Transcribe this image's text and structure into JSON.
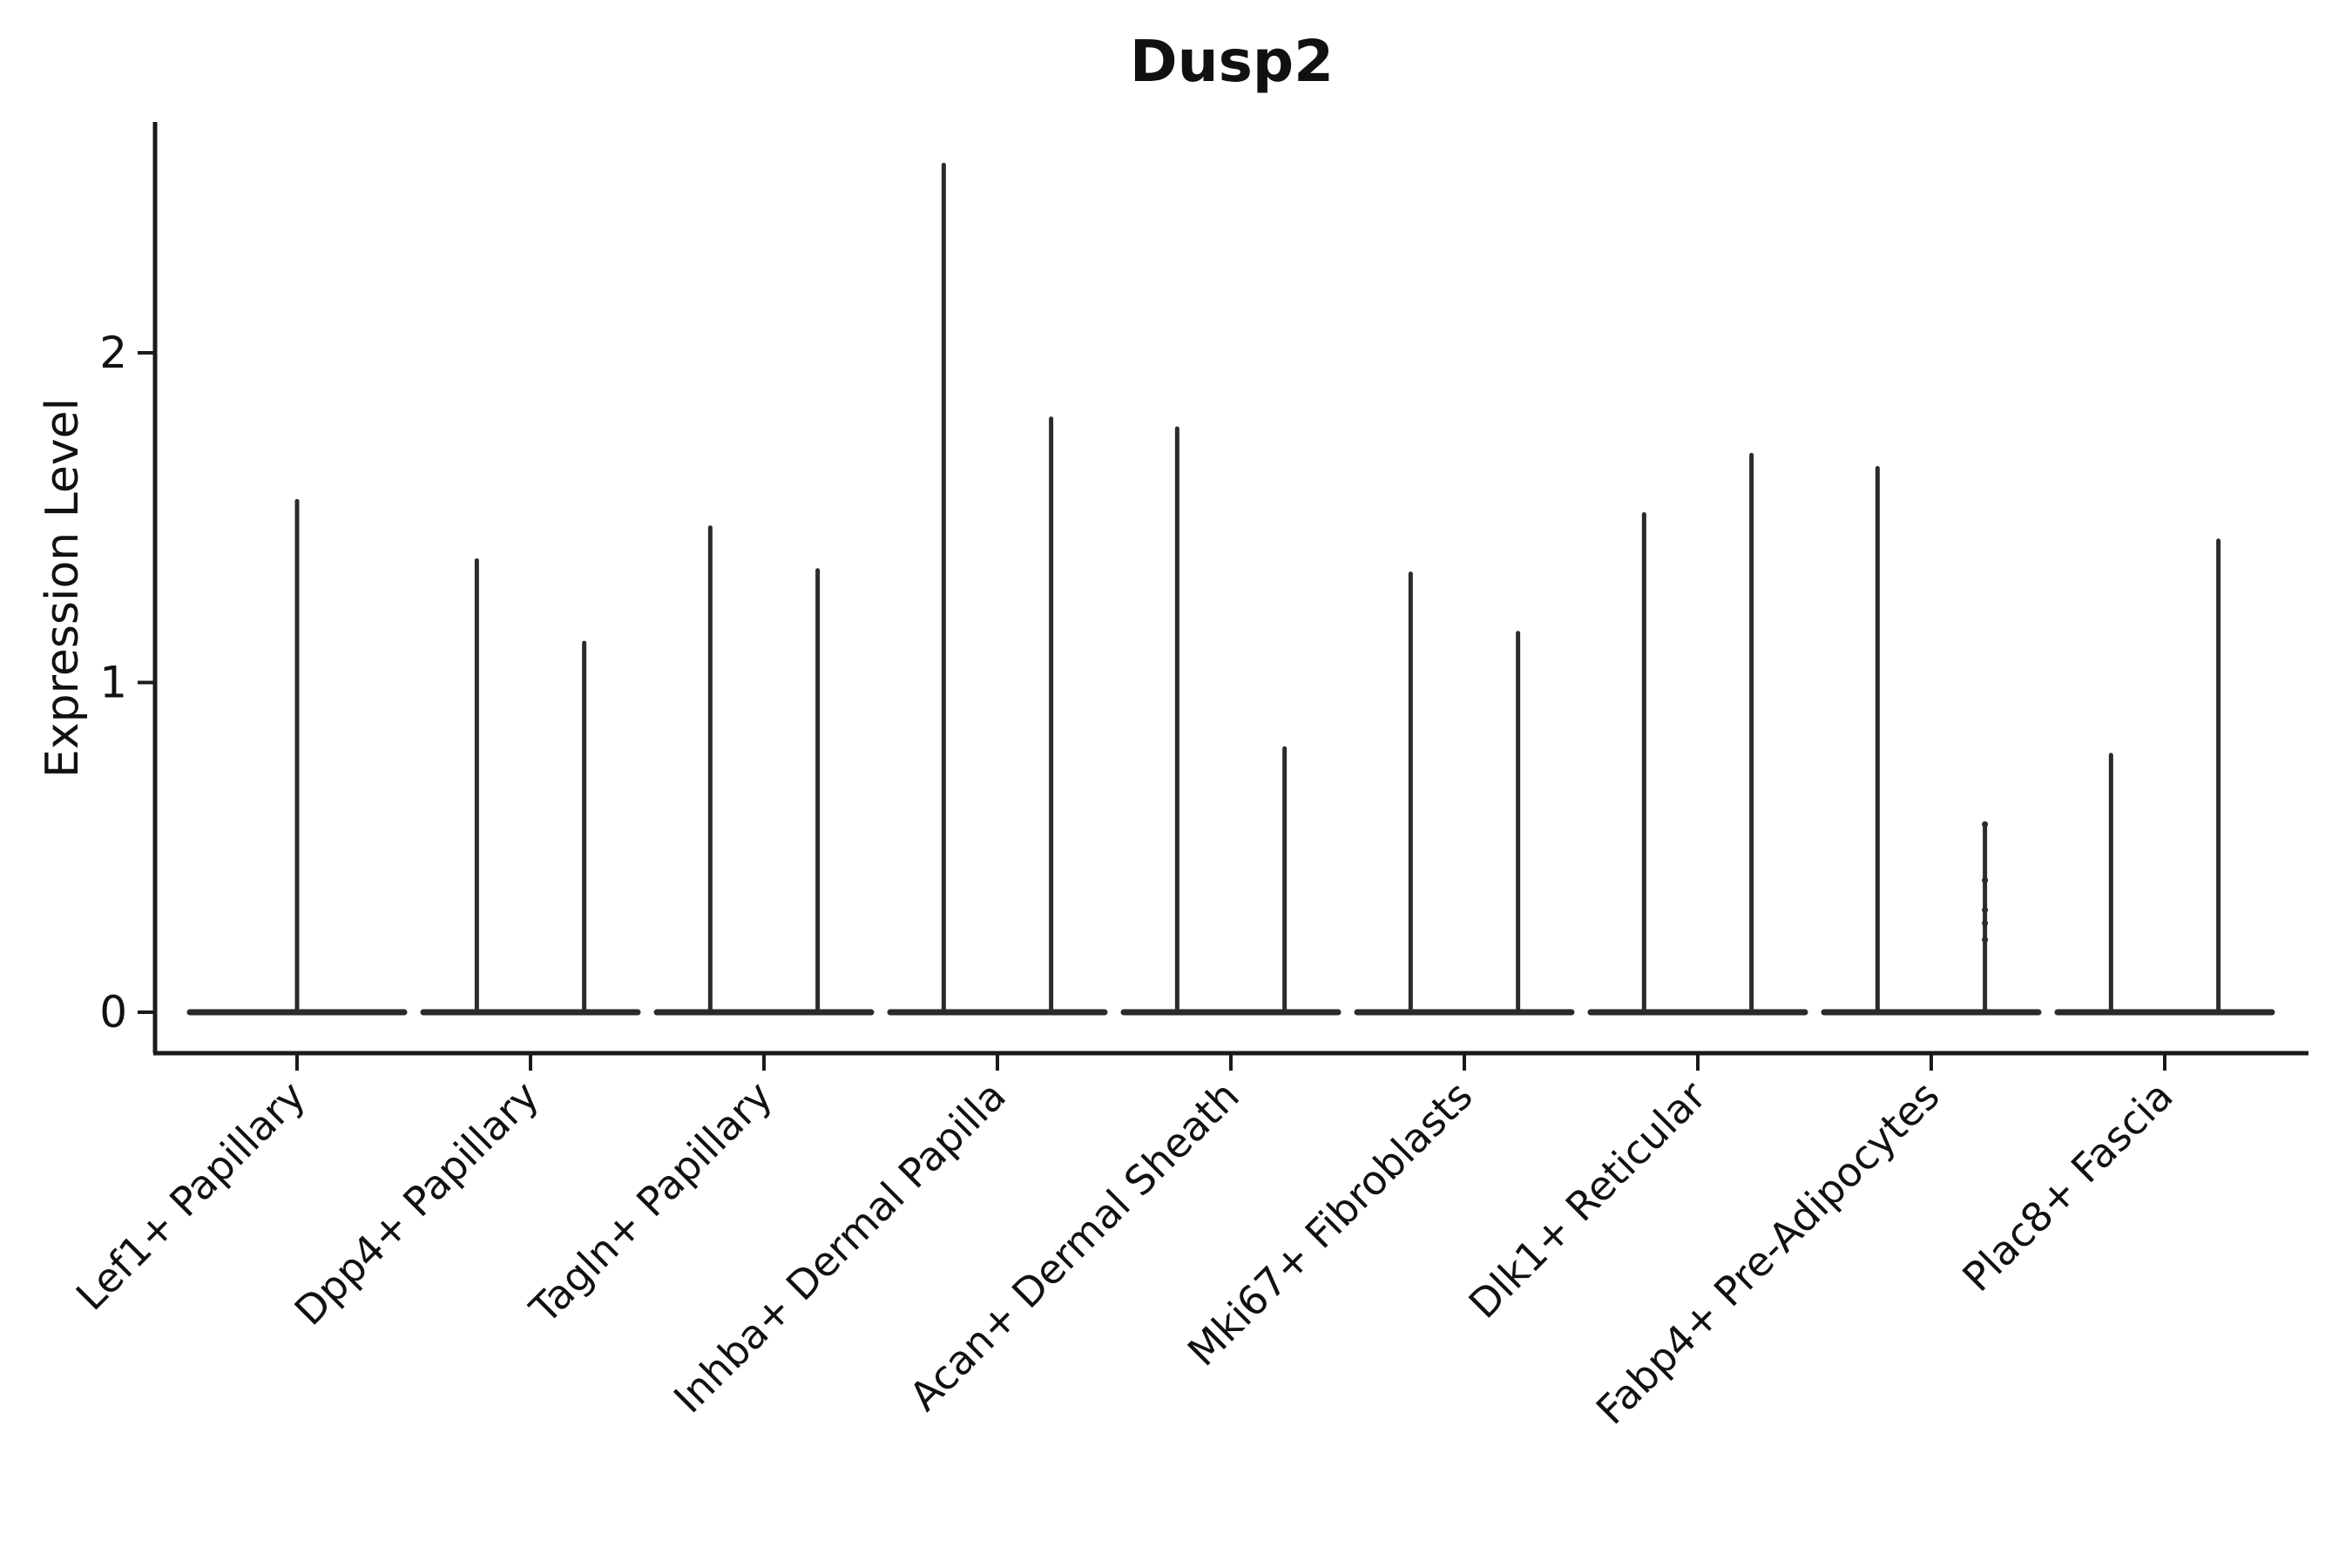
{
  "figure": {
    "title": "Dusp2",
    "ylabel": "Expression Level"
  },
  "chart_data": {
    "type": "violin",
    "title": "Dusp2",
    "xlabel": "",
    "ylabel": "Expression Level",
    "yticks": [
      0,
      1,
      2
    ],
    "ylim": [
      -0.12,
      2.7
    ],
    "grid": false,
    "legend": "none",
    "background": "#ffffff",
    "violin_color": "#2b2b2b",
    "axis_color": "#1a1a1a",
    "text_color": "#111111",
    "categories": [
      "Lef1+ Papillary",
      "Dpp4+ Papillary",
      "Tagln+ Papillary",
      "Inhba+ Dermal Papilla",
      "Acan+ Dermal Sheath",
      "Mki67+ Fibroblasts",
      "Dlk1+ Reticular",
      "Fabp4+ Pre-Adipocytes",
      "Plac8+ Fascia"
    ],
    "violins": [
      {
        "category": "Lef1+ Papillary",
        "spikes": [
          {
            "offset": 0.0,
            "max": 1.55
          }
        ]
      },
      {
        "category": "Dpp4+ Papillary",
        "spikes": [
          {
            "offset": -0.23,
            "max": 1.37
          },
          {
            "offset": 0.23,
            "max": 1.12
          }
        ]
      },
      {
        "category": "Tagln+ Papillary",
        "spikes": [
          {
            "offset": -0.23,
            "max": 1.47
          },
          {
            "offset": 0.23,
            "max": 1.34
          }
        ]
      },
      {
        "category": "Inhba+ Dermal Papilla",
        "spikes": [
          {
            "offset": -0.23,
            "max": 2.57
          },
          {
            "offset": 0.23,
            "max": 1.8
          }
        ]
      },
      {
        "category": "Acan+ Dermal Sheath",
        "spikes": [
          {
            "offset": -0.23,
            "max": 1.77
          },
          {
            "offset": 0.23,
            "max": 0.8
          }
        ]
      },
      {
        "category": "Mki67+ Fibroblasts",
        "spikes": [
          {
            "offset": -0.23,
            "max": 1.33
          },
          {
            "offset": 0.23,
            "max": 1.15
          }
        ]
      },
      {
        "category": "Dlk1+ Reticular",
        "spikes": [
          {
            "offset": -0.23,
            "max": 1.51
          },
          {
            "offset": 0.23,
            "max": 1.69
          }
        ]
      },
      {
        "category": "Fabp4+ Pre-Adipocytes",
        "spikes": [
          {
            "offset": -0.23,
            "max": 1.65
          },
          {
            "offset": 0.23,
            "max": 0.57,
            "points": [
              0.57,
              0.4,
              0.31,
              0.27,
              0.22
            ]
          }
        ]
      },
      {
        "category": "Plac8+ Fascia",
        "spikes": [
          {
            "offset": -0.23,
            "max": 0.78
          },
          {
            "offset": 0.23,
            "max": 1.43
          }
        ]
      }
    ]
  }
}
